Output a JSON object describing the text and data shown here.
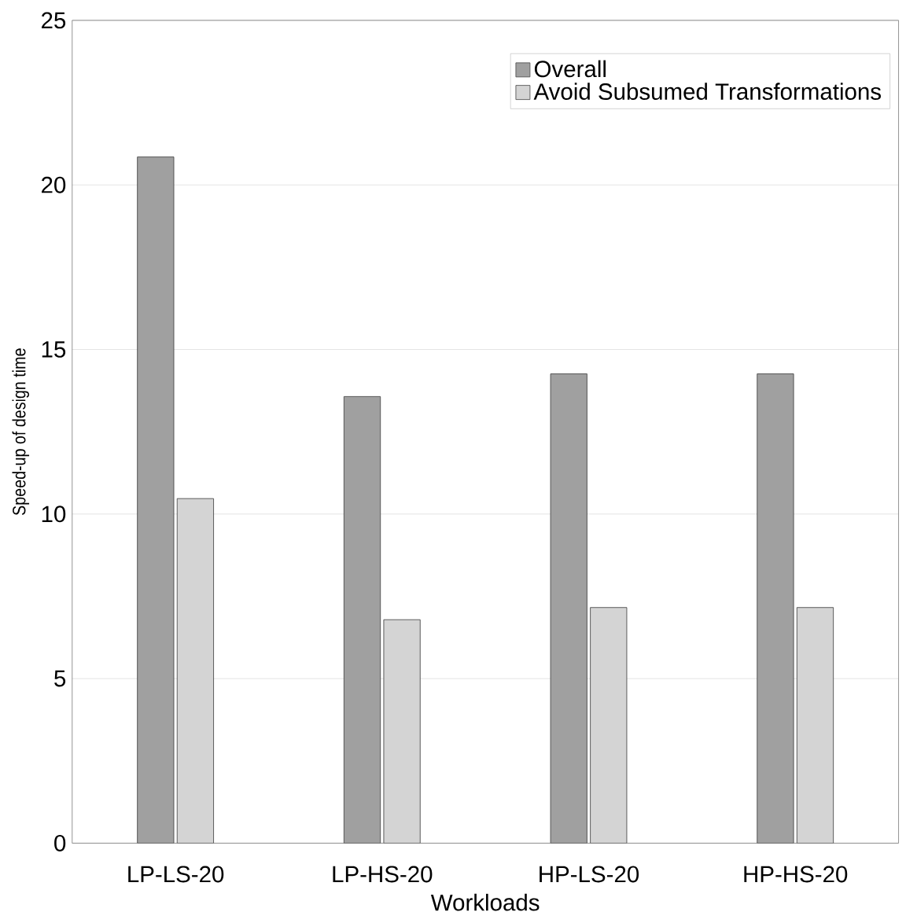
{
  "chart_data": {
    "type": "bar",
    "xlabel": "Workloads",
    "ylabel": "Speed-up of design time",
    "categories": [
      "LP-LS-20",
      "LP-HS-20",
      "HP-LS-20",
      "HP-HS-20"
    ],
    "series": [
      {
        "name": "Overall",
        "color": "#a0a0a0",
        "values": [
          20.85,
          13.57,
          14.26,
          14.26
        ]
      },
      {
        "name": "Avoid Subsumed Transformations",
        "color": "#d4d4d4",
        "values": [
          10.47,
          6.79,
          7.16,
          7.16
        ]
      }
    ],
    "ylim": [
      0,
      25
    ],
    "yticks": [
      0,
      5,
      10,
      15,
      20,
      25
    ],
    "grid": "y",
    "legend": "top right"
  }
}
